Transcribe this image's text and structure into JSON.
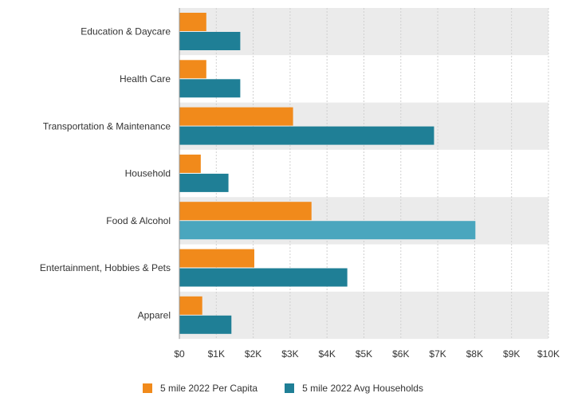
{
  "chart_data": {
    "type": "bar",
    "orientation": "horizontal",
    "categories": [
      "Education & Daycare",
      "Health Care",
      "Transportation & Maintenance",
      "Household",
      "Food & Alcohol",
      "Entertainment, Hobbies & Pets",
      "Apparel"
    ],
    "series": [
      {
        "name": "5 mile 2022 Per Capita",
        "values": [
          730,
          730,
          3080,
          580,
          3580,
          2030,
          620
        ],
        "color": "#f18a1b"
      },
      {
        "name": "5 mile 2022 Avg Households",
        "values": [
          1650,
          1650,
          6900,
          1330,
          8020,
          4550,
          1410
        ],
        "color": "#1f7f96"
      }
    ],
    "xlim": [
      0,
      10000
    ],
    "tick_labels": [
      "$0",
      "$1K",
      "$2K",
      "$3K",
      "$4K",
      "$5K",
      "$6K",
      "$7K",
      "$8K",
      "$9K",
      "$10K"
    ],
    "grid": true,
    "legend_position": "bottom",
    "highlight_colors": {
      "band_alt": "#ebebeb",
      "band_base": "#ffffff",
      "gridline": "#d0d0d0",
      "highlight_bar": "#4aa6be"
    }
  }
}
